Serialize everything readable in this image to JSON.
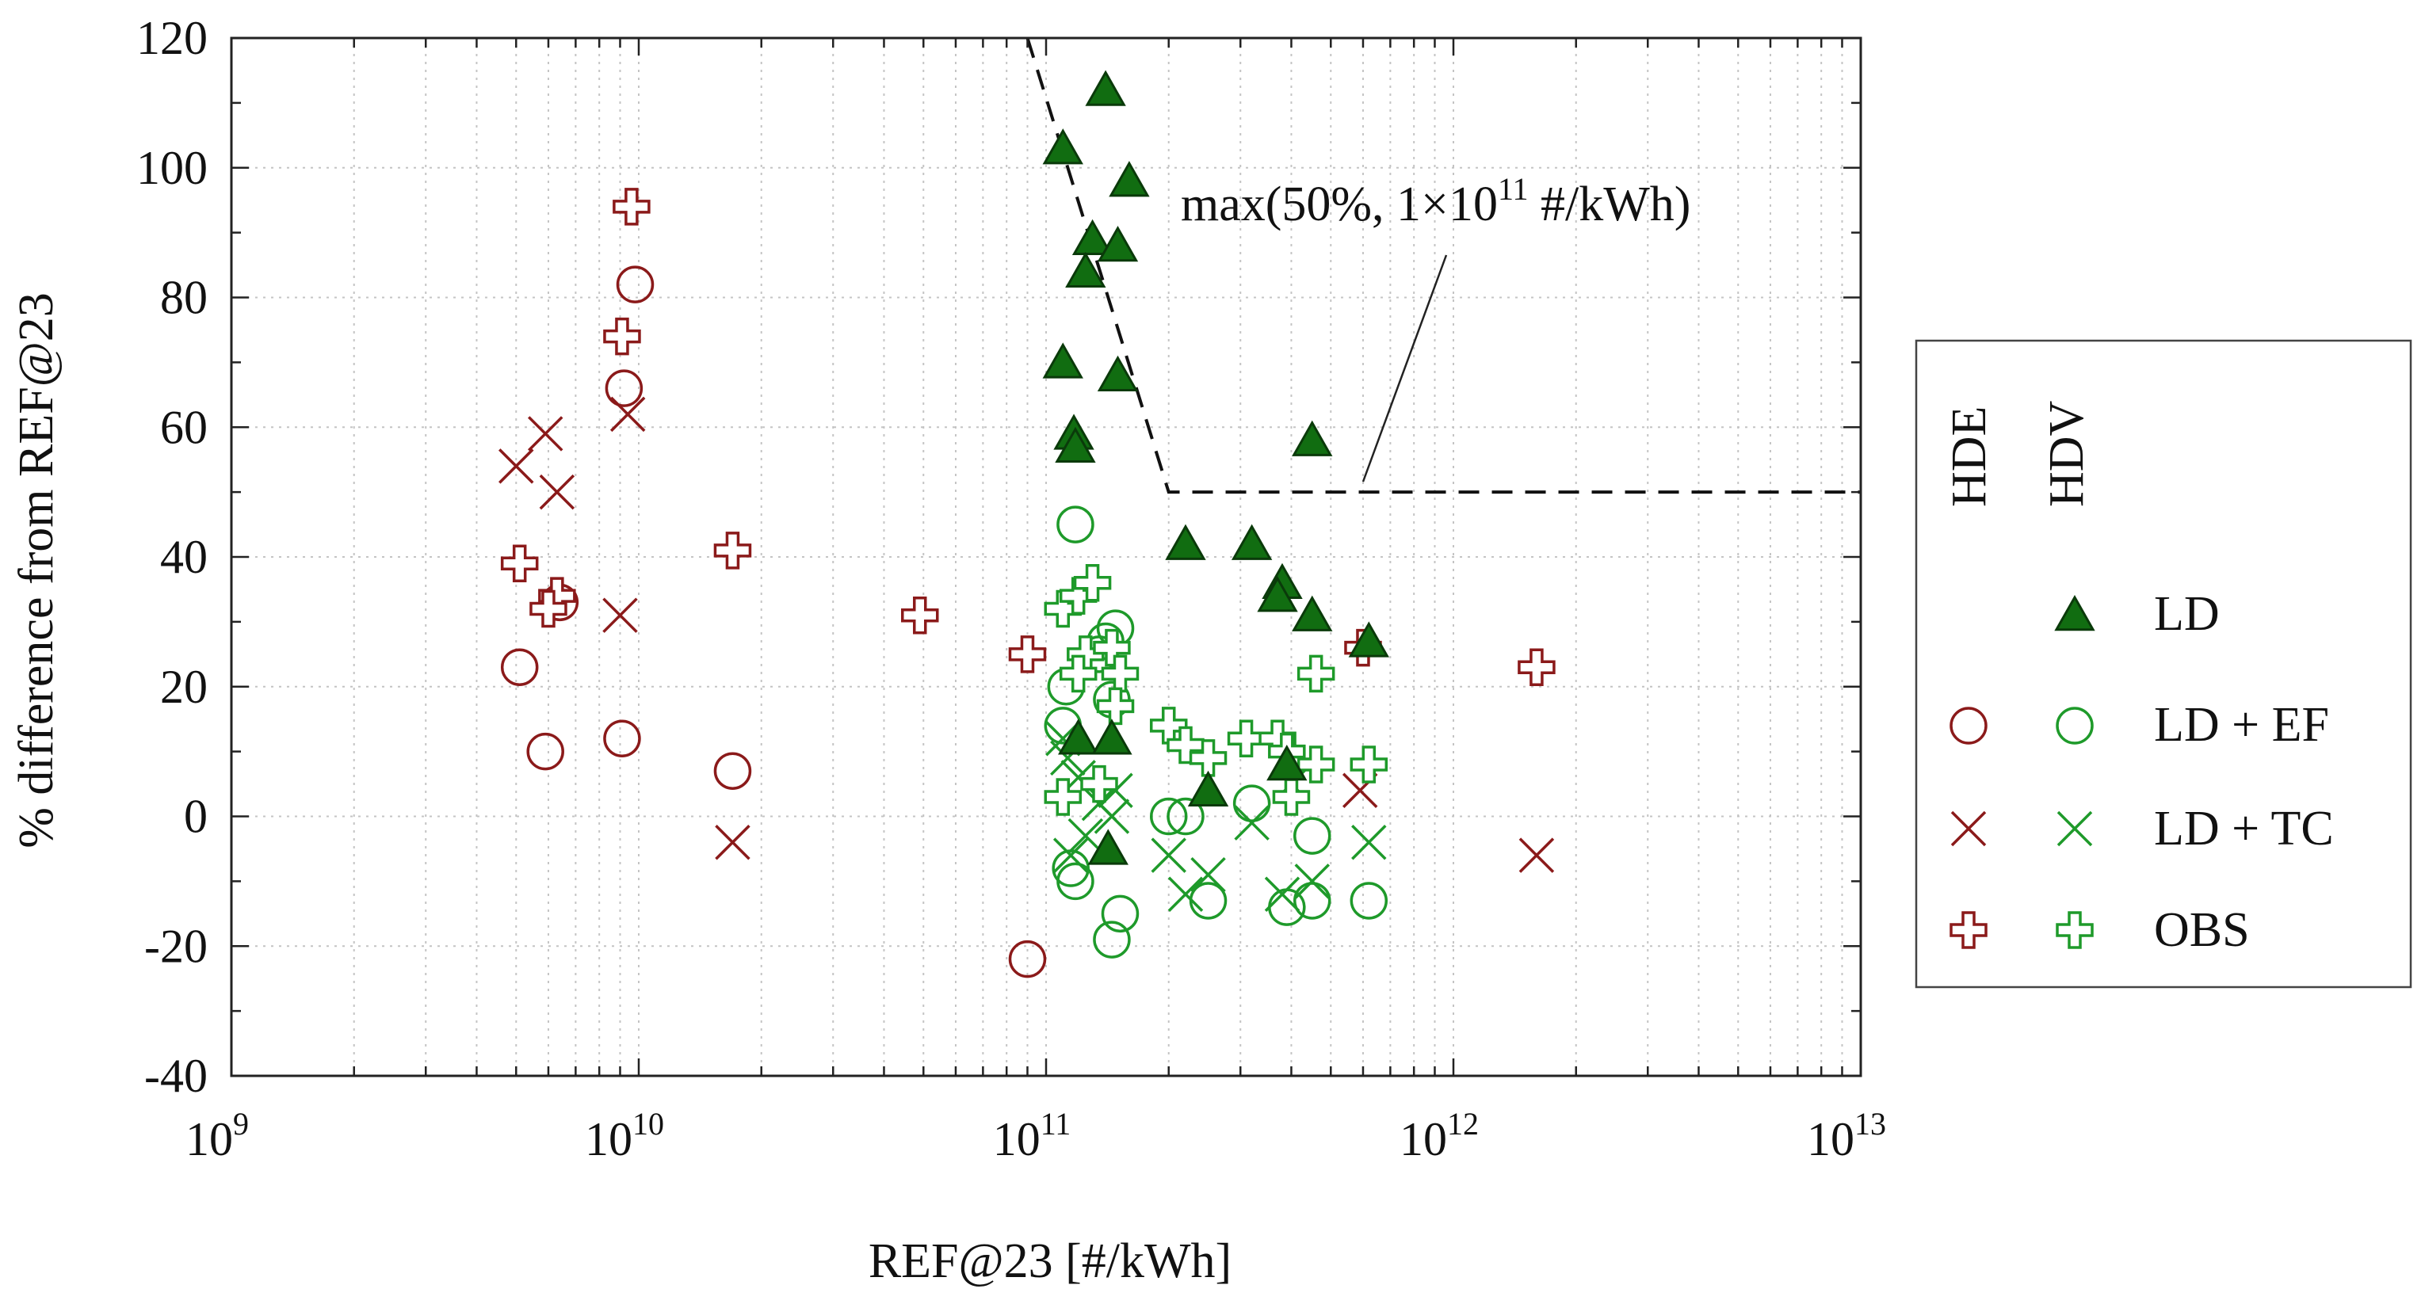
{
  "chart_data": {
    "type": "scatter",
    "title": "",
    "xlabel": "REF@23 [#/kWh]",
    "ylabel": "% difference from REF@23",
    "xscale": "log",
    "xlim": [
      1000000000.0,
      10000000000000.0
    ],
    "ylim": [
      -40,
      120
    ],
    "y_ticks": [
      -40,
      -20,
      0,
      20,
      40,
      60,
      80,
      100,
      120
    ],
    "x_ticks": [
      {
        "value": 1000000000.0,
        "base": "10",
        "exp": "9"
      },
      {
        "value": 10000000000.0,
        "base": "10",
        "exp": "10"
      },
      {
        "value": 100000000000.0,
        "base": "10",
        "exp": "11"
      },
      {
        "value": 1000000000000.0,
        "base": "10",
        "exp": "12"
      },
      {
        "value": 10000000000000.0,
        "base": "10",
        "exp": "13"
      }
    ],
    "grid": true,
    "colors": {
      "HDE": "#8b1a1a",
      "HDV": "#1e9a2a",
      "HDV_fill": "#116d11",
      "HDV_stroke": "#0a3a0a"
    },
    "limit_line": {
      "label": "max(50%, 1×10",
      "label_exp": "11",
      "label_suffix": " #/kWh)",
      "points": [
        [
          90000000000.0,
          120
        ],
        [
          200000000000.0,
          50
        ],
        [
          10000000000000.0,
          50
        ]
      ]
    },
    "legend": {
      "position": "right",
      "columns": [
        "HDE",
        "HDV"
      ],
      "entries": [
        "LD",
        "LD + EF",
        "LD + TC",
        "OBS"
      ]
    },
    "series": [
      {
        "name": "LD",
        "group": "HDV",
        "marker": "triangle",
        "points": [
          [
            140000000000.0,
            112
          ],
          [
            110000000000.0,
            103
          ],
          [
            160000000000.0,
            98
          ],
          [
            130000000000.0,
            89
          ],
          [
            150000000000.0,
            88
          ],
          [
            125000000000.0,
            84
          ],
          [
            110000000000.0,
            70
          ],
          [
            150000000000.0,
            68
          ],
          [
            117000000000.0,
            59
          ],
          [
            118000000000.0,
            57
          ],
          [
            450000000000.0,
            58
          ],
          [
            220000000000.0,
            42
          ],
          [
            320000000000.0,
            42
          ],
          [
            380000000000.0,
            36
          ],
          [
            370000000000.0,
            34
          ],
          [
            450000000000.0,
            31
          ],
          [
            620000000000.0,
            27
          ],
          [
            120000000000.0,
            12
          ],
          [
            145000000000.0,
            12
          ],
          [
            250000000000.0,
            4
          ],
          [
            390000000000.0,
            8
          ],
          [
            142000000000.0,
            -5
          ]
        ]
      },
      {
        "name": "LD",
        "group": "HDE",
        "marker": "triangle",
        "points": []
      },
      {
        "name": "LD + EF",
        "group": "HDE",
        "marker": "circle",
        "points": [
          [
            9800000000.0,
            82
          ],
          [
            9200000000.0,
            66
          ],
          [
            6400000000.0,
            33
          ],
          [
            5100000000.0,
            23
          ],
          [
            5900000000.0,
            10
          ],
          [
            9100000000.0,
            12
          ],
          [
            17000000000.0,
            7
          ],
          [
            90000000000.0,
            -22
          ]
        ]
      },
      {
        "name": "LD + TC",
        "group": "HDE",
        "marker": "x",
        "points": [
          [
            5900000000.0,
            59
          ],
          [
            5000000000.0,
            54
          ],
          [
            6300000000.0,
            50
          ],
          [
            9400000000.0,
            62
          ],
          [
            9000000000.0,
            31
          ],
          [
            17000000000.0,
            -4
          ],
          [
            590000000000.0,
            4
          ],
          [
            1600000000000.0,
            -6
          ]
        ]
      },
      {
        "name": "OBS",
        "group": "HDE",
        "marker": "plus",
        "points": [
          [
            9600000000.0,
            94
          ],
          [
            9100000000.0,
            74
          ],
          [
            5100000000.0,
            39
          ],
          [
            6300000000.0,
            34
          ],
          [
            6000000000.0,
            32
          ],
          [
            17000000000.0,
            41
          ],
          [
            49000000000.0,
            31
          ],
          [
            90000000000.0,
            25
          ],
          [
            600000000000.0,
            26
          ],
          [
            1600000000000.0,
            23
          ]
        ]
      },
      {
        "name": "LD + EF",
        "group": "HDV",
        "marker": "circle",
        "points": [
          [
            118000000000.0,
            45
          ],
          [
            148000000000.0,
            29
          ],
          [
            140000000000.0,
            27
          ],
          [
            135000000000.0,
            25
          ],
          [
            112000000000.0,
            20
          ],
          [
            145000000000.0,
            18
          ],
          [
            110000000000.0,
            14
          ],
          [
            115000000000.0,
            -8
          ],
          [
            118000000000.0,
            -10
          ],
          [
            152000000000.0,
            -15
          ],
          [
            145000000000.0,
            -19
          ],
          [
            200000000000.0,
            0
          ],
          [
            220000000000.0,
            0
          ],
          [
            250000000000.0,
            -13
          ],
          [
            320000000000.0,
            2
          ],
          [
            390000000000.0,
            -14
          ],
          [
            450000000000.0,
            -3
          ],
          [
            450000000000.0,
            -13
          ],
          [
            620000000000.0,
            -13
          ]
        ]
      },
      {
        "name": "LD + TC",
        "group": "HDV",
        "marker": "x",
        "points": [
          [
            110000000000.0,
            12
          ],
          [
            113000000000.0,
            9
          ],
          [
            120000000000.0,
            6
          ],
          [
            135000000000.0,
            2
          ],
          [
            145000000000.0,
            0
          ],
          [
            125000000000.0,
            -3
          ],
          [
            115000000000.0,
            -6
          ],
          [
            148000000000.0,
            4
          ],
          [
            200000000000.0,
            -6
          ],
          [
            220000000000.0,
            -12
          ],
          [
            250000000000.0,
            -9
          ],
          [
            320000000000.0,
            -1
          ],
          [
            380000000000.0,
            -12
          ],
          [
            400000000000.0,
            5
          ],
          [
            450000000000.0,
            -10
          ],
          [
            620000000000.0,
            -4
          ]
        ]
      },
      {
        "name": "OBS",
        "group": "HDV",
        "marker": "plus",
        "points": [
          [
            110000000000.0,
            32
          ],
          [
            120000000000.0,
            34
          ],
          [
            130000000000.0,
            36
          ],
          [
            125000000000.0,
            25
          ],
          [
            145000000000.0,
            26
          ],
          [
            152000000000.0,
            22
          ],
          [
            120000000000.0,
            22
          ],
          [
            148000000000.0,
            17
          ],
          [
            110000000000.0,
            3
          ],
          [
            135000000000.0,
            5
          ],
          [
            200000000000.0,
            14
          ],
          [
            220000000000.0,
            11
          ],
          [
            250000000000.0,
            9
          ],
          [
            310000000000.0,
            12
          ],
          [
            370000000000.0,
            12
          ],
          [
            390000000000.0,
            10
          ],
          [
            400000000000.0,
            3
          ],
          [
            460000000000.0,
            8
          ],
          [
            460000000000.0,
            22
          ],
          [
            620000000000.0,
            8
          ]
        ]
      }
    ]
  }
}
